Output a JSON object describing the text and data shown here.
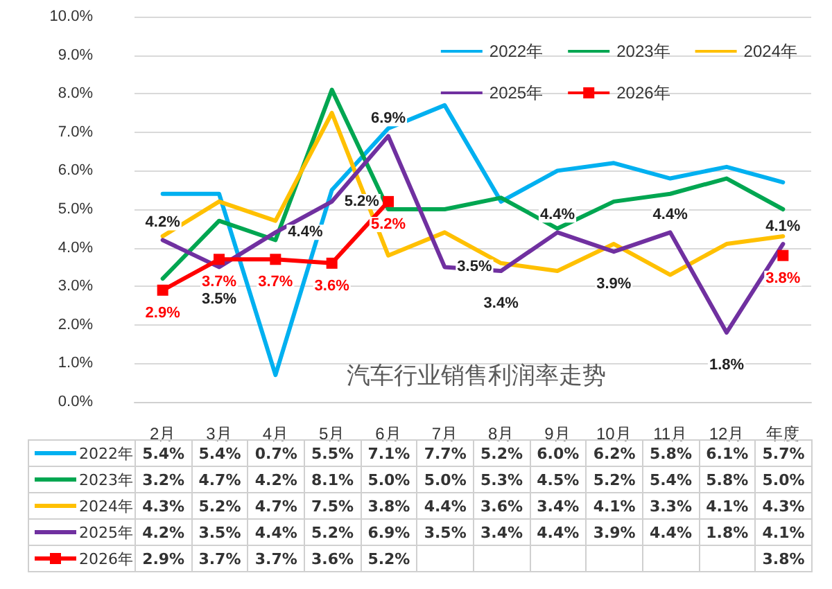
{
  "chart_data": {
    "type": "line",
    "title": "汽车行业销售利润率走势",
    "categories": [
      "2月",
      "3月",
      "4月",
      "5月",
      "6月",
      "7月",
      "8月",
      "9月",
      "10月",
      "11月",
      "12月",
      "年度"
    ],
    "ylim": [
      0,
      10
    ],
    "yticks": [
      {
        "value": 0,
        "label": "0.0%"
      },
      {
        "value": 1,
        "label": "1.0%"
      },
      {
        "value": 2,
        "label": "2.0%"
      },
      {
        "value": 3,
        "label": "3.0%"
      },
      {
        "value": 4,
        "label": "4.0%"
      },
      {
        "value": 5,
        "label": "5.0%"
      },
      {
        "value": 6,
        "label": "6.0%"
      },
      {
        "value": 7,
        "label": "7.0%"
      },
      {
        "value": 8,
        "label": "8.0%"
      },
      {
        "value": 9,
        "label": "9.0%"
      },
      {
        "value": 10,
        "label": "10.0%"
      }
    ],
    "grid": "y",
    "legend": "top right",
    "marker": "none",
    "line_style": "solid",
    "series": [
      {
        "name": "2022年",
        "color": "#00b0f0",
        "values": [
          5.4,
          5.4,
          0.7,
          5.5,
          7.1,
          7.7,
          5.2,
          6.0,
          6.2,
          5.8,
          6.1,
          5.7
        ],
        "value_labels": [
          "5.4%",
          "5.4%",
          "0.7%",
          "5.5%",
          "7.1%",
          "7.7%",
          "5.2%",
          "6.0%",
          "6.2%",
          "5.8%",
          "6.1%",
          "5.7%"
        ]
      },
      {
        "name": "2023年",
        "color": "#00a651",
        "values": [
          3.2,
          4.7,
          4.2,
          8.1,
          5.0,
          5.0,
          5.3,
          4.5,
          5.2,
          5.4,
          5.8,
          5.0
        ],
        "value_labels": [
          "3.2%",
          "4.7%",
          "4.2%",
          "8.1%",
          "5.0%",
          "5.0%",
          "5.3%",
          "4.5%",
          "5.2%",
          "5.4%",
          "5.8%",
          "5.0%"
        ]
      },
      {
        "name": "2024年",
        "color": "#ffc000",
        "values": [
          4.3,
          5.2,
          4.7,
          7.5,
          3.8,
          4.4,
          3.6,
          3.4,
          4.1,
          3.3,
          4.1,
          4.3
        ],
        "value_labels": [
          "4.3%",
          "5.2%",
          "4.7%",
          "7.5%",
          "3.8%",
          "4.4%",
          "3.6%",
          "3.4%",
          "4.1%",
          "3.3%",
          "4.1%",
          "4.3%"
        ]
      },
      {
        "name": "2025年",
        "color": "#7030a0",
        "data_labels": true,
        "values": [
          4.2,
          3.5,
          4.4,
          5.2,
          6.9,
          3.5,
          3.4,
          4.4,
          3.9,
          4.4,
          1.8,
          4.1
        ],
        "value_labels": [
          "4.2%",
          "3.5%",
          "4.4%",
          "5.2%",
          "6.9%",
          "3.5%",
          "3.4%",
          "4.4%",
          "3.9%",
          "4.4%",
          "1.8%",
          "4.1%"
        ]
      },
      {
        "name": "2026年",
        "color": "#ff0000",
        "marker": "square",
        "data_labels": true,
        "values": [
          2.9,
          3.7,
          3.7,
          3.6,
          5.2,
          null,
          null,
          null,
          null,
          null,
          null,
          3.8
        ],
        "value_labels": [
          "2.9%",
          "3.7%",
          "3.7%",
          "3.6%",
          "5.2%",
          null,
          null,
          null,
          null,
          null,
          null,
          "3.8%"
        ]
      }
    ]
  }
}
